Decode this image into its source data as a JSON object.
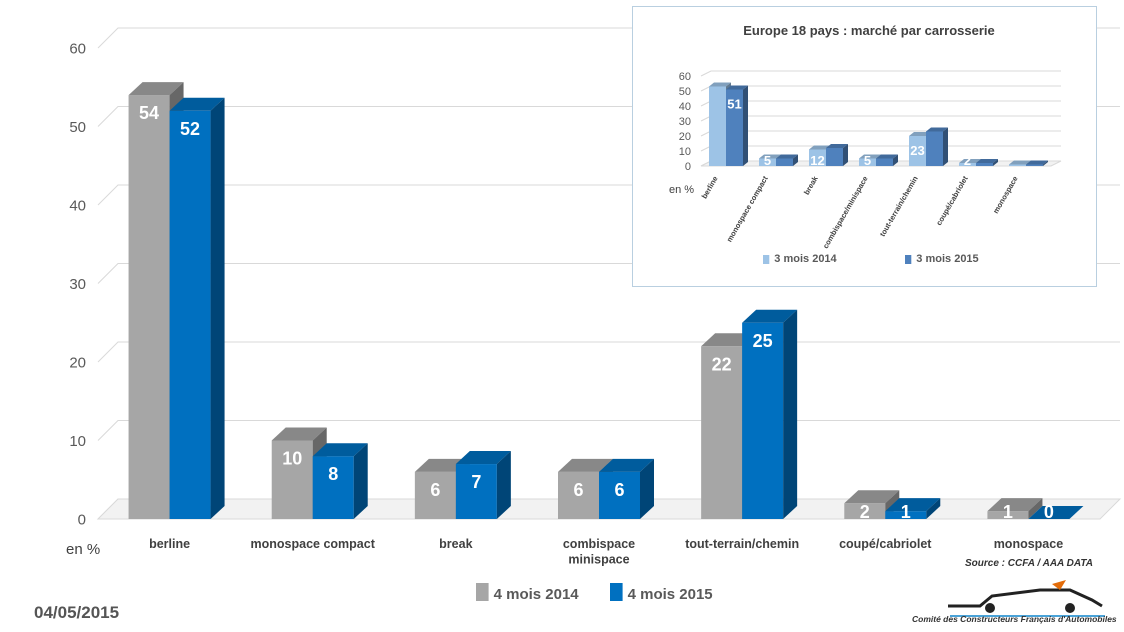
{
  "chart_data": [
    {
      "type": "bar",
      "categories": [
        "berline",
        "monospace  compact",
        "break",
        "combispace minispace",
        "tout-terrain/chemin",
        "coupé/cabriolet",
        "monospace"
      ],
      "series": [
        {
          "name": "4 mois 2014",
          "values": [
            54,
            10,
            6,
            6,
            22,
            2,
            1
          ],
          "color": "#a6a6a6"
        },
        {
          "name": "4 mois 2015",
          "values": [
            52,
            8,
            7,
            6,
            25,
            1,
            0
          ],
          "color": "#0070c0"
        }
      ],
      "title": "",
      "ylabel": "en %",
      "ylim": [
        0,
        60
      ],
      "yticks": [
        0,
        10,
        20,
        30,
        40,
        50,
        60
      ],
      "grid": true,
      "legend": "bottom",
      "data_labels": true
    },
    {
      "type": "bar",
      "title": "Europe 18 pays : marché par carrosserie",
      "categories": [
        "berline",
        "monospace compact",
        "break",
        "combispace/minispace",
        "tout-terrain/chemin",
        "coupé/cabriolet",
        "monospace"
      ],
      "series": [
        {
          "name": "3 mois 2014",
          "values": [
            53,
            5,
            11,
            5,
            20,
            2,
            1
          ],
          "color": "#9dc3e6"
        },
        {
          "name": "3 mois 2015",
          "values": [
            51,
            5,
            12,
            5,
            23,
            2,
            1
          ],
          "color": "#4f81bd"
        }
      ],
      "shown_labels": [
        "",
        "5",
        "12",
        "5",
        "23",
        "2",
        "",
        "51",
        "",
        "",
        "",
        "",
        "",
        ""
      ],
      "ylabel": "en %",
      "ylim": [
        0,
        60
      ],
      "yticks": [
        0,
        10,
        20,
        30,
        40,
        50,
        60
      ],
      "grid": true,
      "legend": "bottom"
    }
  ],
  "footer": {
    "date": "04/05/2015",
    "source": "Source : CCFA / AAA DATA",
    "logo_caption": "Comité des Constructeurs Français d'Automobiles"
  }
}
